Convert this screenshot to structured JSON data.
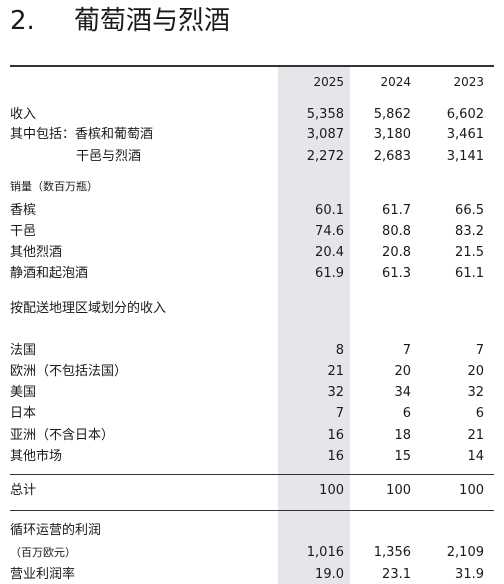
{
  "header": {
    "number": "2.",
    "title": "葡萄酒与烈酒"
  },
  "table": {
    "columns": [
      "2025",
      "2024",
      "2023"
    ],
    "rows": [
      {
        "label": "收入",
        "values": [
          "5,358",
          "5,862",
          "6,602"
        ]
      },
      {
        "label": "其中包括：香槟和葡萄酒",
        "values": [
          "3,087",
          "3,180",
          "3,461"
        ]
      },
      {
        "label": "干邑与烈酒",
        "values": [
          "2,272",
          "2,683",
          "3,141"
        ]
      },
      {
        "label": "销量（数百万瓶）"
      },
      {
        "label": "香槟",
        "values": [
          "60.1",
          "61.7",
          "66.5"
        ]
      },
      {
        "label": "干邑",
        "values": [
          "74.6",
          "80.8",
          "83.2"
        ]
      },
      {
        "label": "其他烈酒",
        "values": [
          "20.4",
          "20.8",
          "21.5"
        ]
      },
      {
        "label": "静酒和起泡酒",
        "values": [
          "61.9",
          "61.3",
          "61.1"
        ]
      },
      {
        "label": "按配送地理区域划分的收入"
      },
      {
        "label": "法国",
        "values": [
          "8",
          "7",
          "7"
        ]
      },
      {
        "label": "欧洲（不包括法国）",
        "values": [
          "21",
          "20",
          "20"
        ]
      },
      {
        "label": "美国",
        "values": [
          "32",
          "34",
          "32"
        ]
      },
      {
        "label": "日本",
        "values": [
          "7",
          "6",
          "6"
        ]
      },
      {
        "label": "亚洲（不含日本）",
        "values": [
          "16",
          "18",
          "21"
        ]
      },
      {
        "label": "其他市场",
        "values": [
          "16",
          "15",
          "14"
        ]
      },
      {
        "label": "总计",
        "values": [
          "100",
          "100",
          "100"
        ]
      },
      {
        "label": "循环运营的利润"
      },
      {
        "label": "（百万欧元）",
        "values": [
          "1,016",
          "1,356",
          "2,109"
        ]
      },
      {
        "label": "营业利润率",
        "values": [
          "19.0",
          "23.1",
          "31.9"
        ]
      }
    ]
  }
}
